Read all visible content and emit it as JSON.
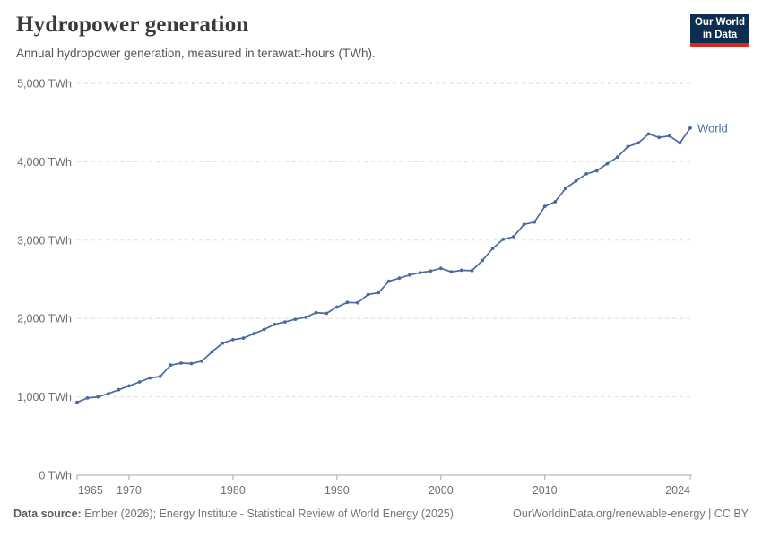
{
  "header": {
    "title": "Hydropower generation",
    "subtitle": "Annual hydropower generation, measured in terawatt-hours (TWh)."
  },
  "logo": {
    "line1": "Our World",
    "line2": "in Data",
    "bg_color": "#0d2d51",
    "accent_color": "#d42b21"
  },
  "chart_data": {
    "type": "line",
    "title": "Hydropower generation",
    "unit": "TWh",
    "grid": "horizontal-dashed",
    "legend_position": "end-of-line",
    "xlim": [
      1965,
      2024
    ],
    "ylim": [
      0,
      5000
    ],
    "x": [
      1965,
      1966,
      1967,
      1968,
      1969,
      1970,
      1971,
      1972,
      1973,
      1974,
      1975,
      1976,
      1977,
      1978,
      1979,
      1980,
      1981,
      1982,
      1983,
      1984,
      1985,
      1986,
      1987,
      1988,
      1989,
      1990,
      1991,
      1992,
      1993,
      1994,
      1995,
      1996,
      1997,
      1998,
      1999,
      2000,
      2001,
      2002,
      2003,
      2004,
      2005,
      2006,
      2007,
      2008,
      2009,
      2010,
      2011,
      2012,
      2013,
      2014,
      2015,
      2016,
      2017,
      2018,
      2019,
      2020,
      2021,
      2022,
      2023,
      2024
    ],
    "series": [
      {
        "name": "World",
        "color": "#4a69a2",
        "values": [
          930,
          985,
          1000,
          1040,
          1090,
          1140,
          1190,
          1240,
          1260,
          1405,
          1430,
          1425,
          1455,
          1575,
          1685,
          1730,
          1750,
          1805,
          1860,
          1925,
          1955,
          1990,
          2015,
          2075,
          2065,
          2145,
          2205,
          2200,
          2305,
          2330,
          2475,
          2515,
          2555,
          2585,
          2605,
          2640,
          2595,
          2615,
          2610,
          2740,
          2895,
          3010,
          3045,
          3200,
          3230,
          3430,
          3490,
          3660,
          3755,
          3845,
          3885,
          3975,
          4060,
          4195,
          4240,
          4355,
          4310,
          4330,
          4240,
          4430
        ]
      }
    ],
    "y_ticks": [
      0,
      1000,
      2000,
      3000,
      4000,
      5000
    ],
    "y_tick_labels": [
      "0 TWh",
      "1,000 TWh",
      "2,000 TWh",
      "3,000 TWh",
      "4,000 TWh",
      "5,000 TWh"
    ],
    "x_ticks": [
      1970,
      1980,
      1990,
      2000,
      2010
    ],
    "x_tick_labels": [
      "1970",
      "1980",
      "1990",
      "2000",
      "2010"
    ],
    "x_edge_labels": [
      "1965",
      "2024"
    ],
    "colors": {
      "gridline": "#dddddd",
      "axis": "#a8a8a8",
      "tick_label": "#6e6e6e"
    }
  },
  "footer": {
    "source_label": "Data source:",
    "source_text": " Ember (2026); Energy Institute - Statistical Review of World Energy (2025)",
    "link_text": "OurWorldinData.org/renewable-energy | CC BY"
  }
}
